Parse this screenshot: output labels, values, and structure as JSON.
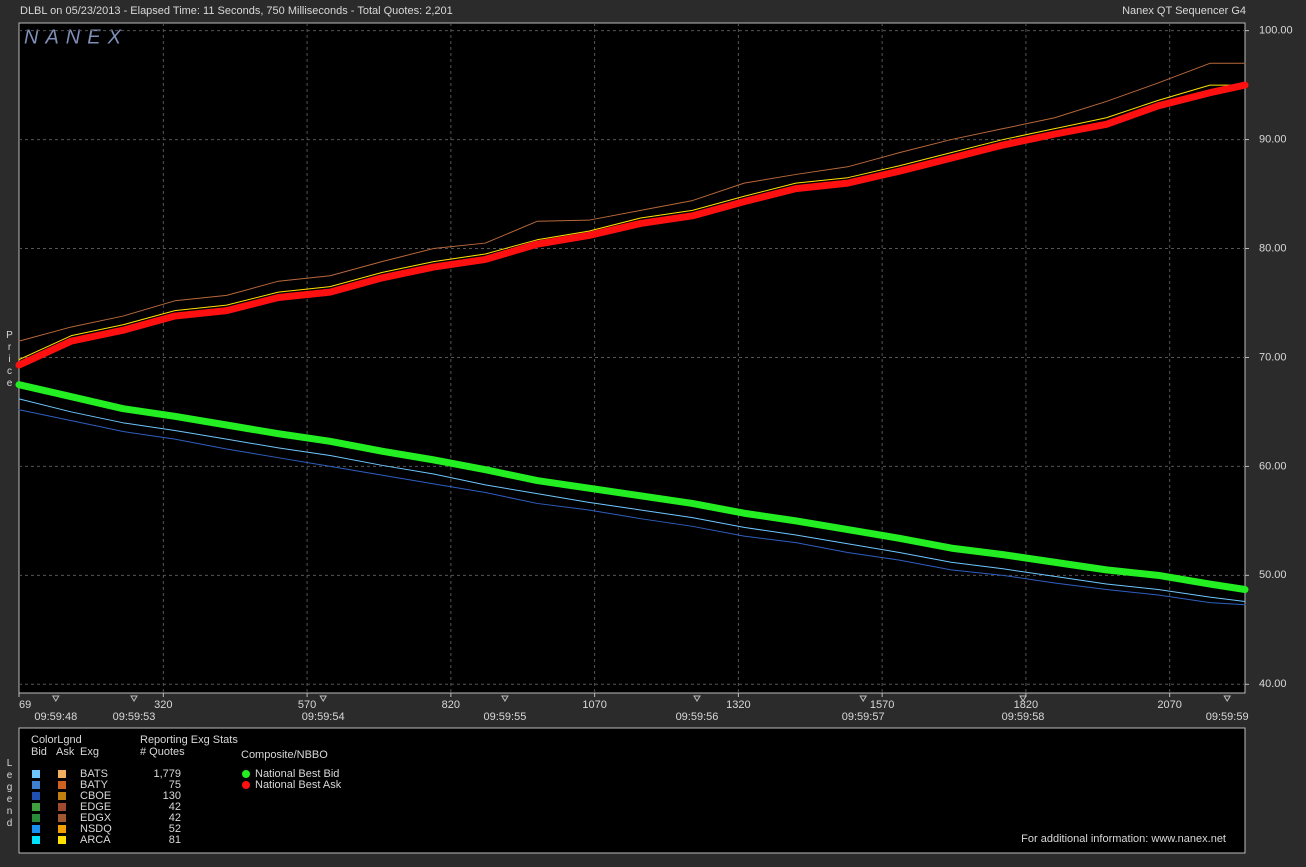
{
  "header": {
    "left": "DLBL on 05/23/2013  -  Elapsed Time: 11 Seconds, 750 Milliseconds  -  Total Quotes: 2,201",
    "right": "Nanex QT Sequencer G4",
    "watermark": "NANEX"
  },
  "chart_data": {
    "type": "line",
    "y_label": "Price",
    "xlim": [
      69,
      2201
    ],
    "ylim": [
      39.2,
      100.7
    ],
    "xticks": [
      69,
      320,
      570,
      820,
      1070,
      1320,
      1570,
      1820,
      2070
    ],
    "time_ticks": [
      {
        "value": 133,
        "label": "09:59:48"
      },
      {
        "value": 269,
        "label": "09:59:53"
      },
      {
        "value": 598,
        "label": "09:59:54"
      },
      {
        "value": 914,
        "label": "09:59:55"
      },
      {
        "value": 1248,
        "label": "09:59:56"
      },
      {
        "value": 1537,
        "label": "09:59:57"
      },
      {
        "value": 1815,
        "label": "09:59:58"
      },
      {
        "value": 2170,
        "label": "09:59:59"
      }
    ],
    "yticks": [
      {
        "value": 40,
        "label": "40.00"
      },
      {
        "value": 50,
        "label": "50.00"
      },
      {
        "value": 60,
        "label": "60.00"
      },
      {
        "value": 70,
        "label": "70.00"
      },
      {
        "value": 80,
        "label": "80.00"
      },
      {
        "value": 90,
        "label": "90.00"
      },
      {
        "value": 100,
        "label": "100.00"
      }
    ],
    "grid": true,
    "x": [
      69,
      160,
      250,
      340,
      430,
      520,
      610,
      700,
      790,
      880,
      970,
      1060,
      1150,
      1240,
      1330,
      1420,
      1510,
      1600,
      1690,
      1780,
      1870,
      1960,
      2050,
      2140,
      2201
    ],
    "series": [
      {
        "name": "BATS",
        "side": "Ask",
        "color": "#b8683a",
        "width": 1,
        "values": [
          71.5,
          72.8,
          73.8,
          75.2,
          75.7,
          77.0,
          77.5,
          78.8,
          80.0,
          80.5,
          82.5,
          82.6,
          83.5,
          84.4,
          86.0,
          86.8,
          87.5,
          88.8,
          90.0,
          91.0,
          92.0,
          93.5,
          95.2,
          97.0,
          97.0
        ]
      },
      {
        "name": "ARCA",
        "side": "Ask",
        "color": "#ffe000",
        "width": 1,
        "values": [
          69.8,
          72.0,
          73.0,
          74.3,
          74.8,
          76.0,
          76.5,
          77.8,
          78.8,
          79.5,
          80.8,
          81.6,
          82.8,
          83.5,
          84.8,
          86.0,
          86.5,
          87.6,
          88.8,
          90.0,
          91.0,
          92.0,
          93.6,
          95.0,
          95.0
        ]
      },
      {
        "name": "BATS",
        "side": "Bid",
        "color": "#6ec6ff",
        "width": 1,
        "values": [
          66.2,
          65.0,
          64.0,
          63.3,
          62.5,
          61.7,
          61.0,
          60.1,
          59.3,
          58.3,
          57.5,
          56.7,
          56.0,
          55.3,
          54.4,
          53.7,
          52.9,
          52.1,
          51.2,
          50.6,
          49.9,
          49.2,
          48.7,
          48.0,
          47.6
        ]
      },
      {
        "name": "CBOE",
        "side": "Bid",
        "color": "#2f5fc0",
        "width": 1,
        "values": [
          65.2,
          64.2,
          63.2,
          62.5,
          61.6,
          60.8,
          60.0,
          59.2,
          58.4,
          57.6,
          56.6,
          56.0,
          55.2,
          54.5,
          53.6,
          53.0,
          52.1,
          51.4,
          50.5,
          50.0,
          49.3,
          48.7,
          48.2,
          47.5,
          47.3
        ]
      },
      {
        "name": "National Best Bid",
        "color": "#22ee22",
        "width": 7,
        "values": [
          67.5,
          66.4,
          65.3,
          64.6,
          63.8,
          63.0,
          62.3,
          61.4,
          60.6,
          59.7,
          58.7,
          58.0,
          57.3,
          56.6,
          55.7,
          55.0,
          54.2,
          53.4,
          52.5,
          51.9,
          51.2,
          50.5,
          50.0,
          49.2,
          48.7
        ]
      },
      {
        "name": "National Best Ask",
        "color": "#ff1010",
        "width": 7,
        "values": [
          69.3,
          71.5,
          72.5,
          73.8,
          74.3,
          75.5,
          76.0,
          77.3,
          78.3,
          79.0,
          80.4,
          81.2,
          82.3,
          83.0,
          84.3,
          85.5,
          86.0,
          87.1,
          88.3,
          89.5,
          90.5,
          91.4,
          93.1,
          94.3,
          95.0
        ]
      }
    ]
  },
  "legend": {
    "label": "Legend",
    "title": "ColorLgnd",
    "columns": [
      "Bid",
      "Ask",
      "Exg"
    ],
    "stats_title": "Reporting Exg Stats",
    "stats_column": "# Quotes",
    "nbbo_title": "Composite/NBBO",
    "rows": [
      {
        "exg": "BATS",
        "quotes": "1,779",
        "bid_color": "#6ec6ff",
        "ask_color": "#f0b060"
      },
      {
        "exg": "BATY",
        "quotes": "75",
        "bid_color": "#3f7fd0",
        "ask_color": "#d06020"
      },
      {
        "exg": "CBOE",
        "quotes": "130",
        "bid_color": "#2050b0",
        "ask_color": "#c08010"
      },
      {
        "exg": "EDGE",
        "quotes": "42",
        "bid_color": "#40a040",
        "ask_color": "#a04a30"
      },
      {
        "exg": "EDGX",
        "quotes": "42",
        "bid_color": "#2a8a3a",
        "ask_color": "#a05830"
      },
      {
        "exg": "NSDQ",
        "quotes": "52",
        "bid_color": "#1890f0",
        "ask_color": "#f0a000"
      },
      {
        "exg": "ARCA",
        "quotes": "81",
        "bid_color": "#00e0ff",
        "ask_color": "#ffe000"
      }
    ],
    "footer": "For additional information: www.nanex.net"
  }
}
